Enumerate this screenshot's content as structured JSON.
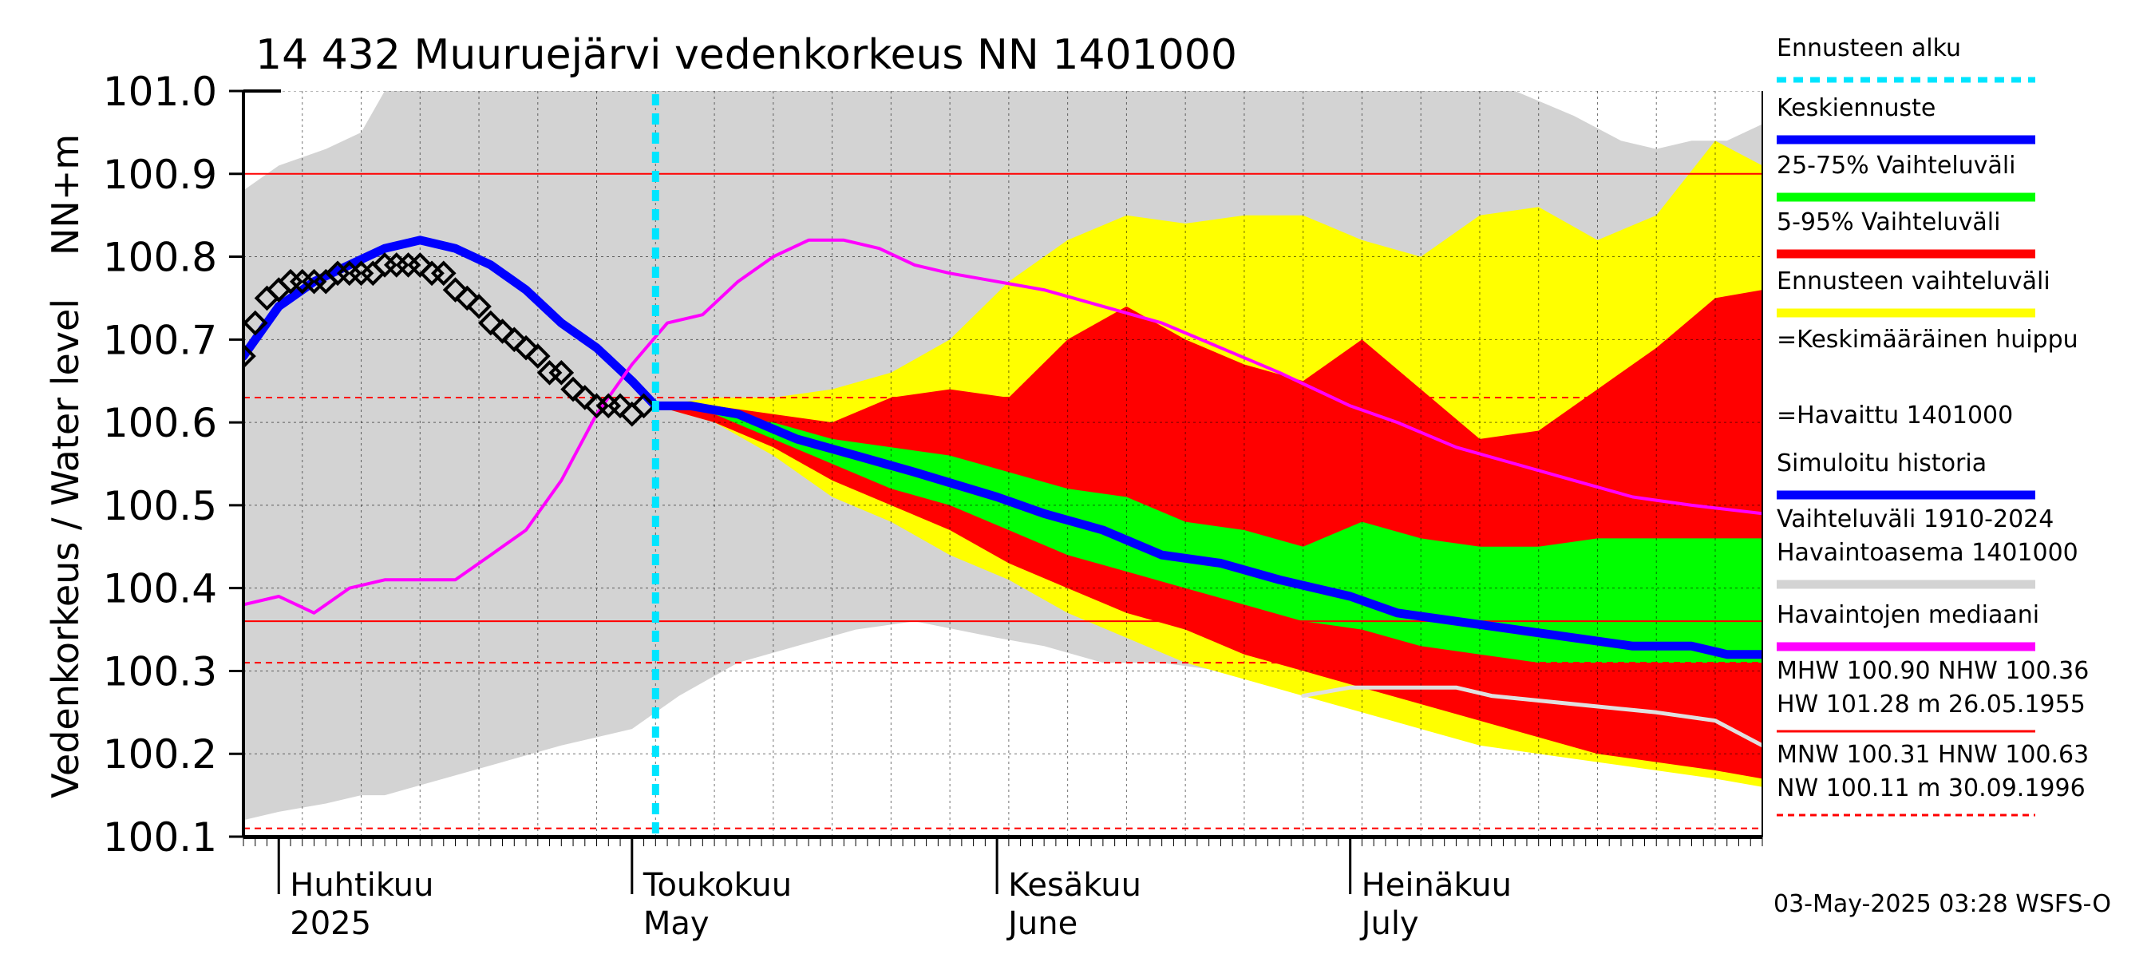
{
  "chart_data": {
    "type": "area",
    "title": "14 432 Muuruejärvi vedenkorkeus NN 1401000",
    "ylabel_left": "Vedenkorkeus / Water level",
    "ylabel_unit": "NN+m",
    "ylim": [
      100.1,
      101.0
    ],
    "yticks": [
      "100.1",
      "100.2",
      "100.3",
      "100.4",
      "100.5",
      "100.6",
      "100.7",
      "100.8",
      "100.9",
      "101.0"
    ],
    "xlim": [
      "2025-03-29",
      "2025-08-05"
    ],
    "forecast_start": "2025-05-03",
    "months": [
      {
        "fi": "Huhtikuu",
        "en": "2025",
        "date": "2025-04-01"
      },
      {
        "fi": "Toukokuu",
        "en": "May",
        "date": "2025-05-01"
      },
      {
        "fi": "Kesäkuu",
        "en": "June",
        "date": "2025-06-01"
      },
      {
        "fi": "Heinäkuu",
        "en": "July",
        "date": "2025-07-01"
      }
    ],
    "reference_lines": [
      {
        "label": "MHW",
        "value": 100.9,
        "style": "solid"
      },
      {
        "label": "NHW",
        "value": 100.36,
        "style": "solid"
      },
      {
        "label": "HNW",
        "value": 100.63,
        "style": "dashed"
      },
      {
        "label": "MNW",
        "value": 100.31,
        "style": "dashed"
      },
      {
        "label": "NW",
        "value": 100.11,
        "style": "dashed"
      }
    ],
    "series": [
      {
        "name": "Vaihteluväli 1910-2024 Havaintoasema 1401000",
        "type": "band",
        "color": "#d3d3d3",
        "x": [
          "2025-03-29",
          "2025-04-01",
          "2025-04-05",
          "2025-04-08",
          "2025-04-10",
          "2025-04-15",
          "2025-04-20",
          "2025-04-25",
          "2025-05-01",
          "2025-05-05",
          "2025-05-10",
          "2025-05-15",
          "2025-05-20",
          "2025-05-25",
          "2025-06-01",
          "2025-06-05",
          "2025-06-10",
          "2025-06-15",
          "2025-06-20",
          "2025-06-25",
          "2025-07-01",
          "2025-07-05",
          "2025-07-10",
          "2025-07-15",
          "2025-07-20",
          "2025-07-24",
          "2025-07-27",
          "2025-07-30",
          "2025-08-02",
          "2025-08-05"
        ],
        "low": [
          100.12,
          100.13,
          100.14,
          100.15,
          100.15,
          100.17,
          100.19,
          100.21,
          100.23,
          100.27,
          100.31,
          100.33,
          100.35,
          100.36,
          100.34,
          100.33,
          100.31,
          100.31,
          100.3,
          100.29,
          100.28,
          100.28,
          100.27,
          100.26,
          100.26,
          100.25,
          100.24,
          100.23,
          100.22,
          100.21
        ],
        "high": [
          100.88,
          100.91,
          100.93,
          100.95,
          101.0,
          101.0,
          101.0,
          101.0,
          101.0,
          101.0,
          101.0,
          101.0,
          101.0,
          101.0,
          101.0,
          101.0,
          101.0,
          101.0,
          101.0,
          101.0,
          101.0,
          101.0,
          101.0,
          101.0,
          100.97,
          100.94,
          100.93,
          100.94,
          100.94,
          100.96
        ]
      },
      {
        "name": "Ennusteen vaihteluväli",
        "type": "band",
        "color": "#ffff00",
        "x": [
          "2025-05-03",
          "2025-05-08",
          "2025-05-13",
          "2025-05-18",
          "2025-05-23",
          "2025-05-28",
          "2025-06-02",
          "2025-06-07",
          "2025-06-12",
          "2025-06-17",
          "2025-06-22",
          "2025-06-27",
          "2025-07-02",
          "2025-07-07",
          "2025-07-12",
          "2025-07-17",
          "2025-07-22",
          "2025-07-27",
          "2025-08-01",
          "2025-08-05"
        ],
        "low": [
          100.62,
          100.6,
          100.56,
          100.51,
          100.48,
          100.44,
          100.41,
          100.37,
          100.34,
          100.31,
          100.29,
          100.27,
          100.25,
          100.23,
          100.21,
          100.2,
          100.19,
          100.18,
          100.17,
          100.16
        ],
        "high": [
          100.62,
          100.63,
          100.63,
          100.64,
          100.66,
          100.7,
          100.77,
          100.82,
          100.85,
          100.84,
          100.85,
          100.85,
          100.82,
          100.8,
          100.85,
          100.86,
          100.82,
          100.85,
          100.94,
          100.91
        ]
      },
      {
        "name": "5-95% Vaihteluväli",
        "type": "band",
        "color": "#ff0000",
        "x": [
          "2025-05-03",
          "2025-05-08",
          "2025-05-13",
          "2025-05-18",
          "2025-05-23",
          "2025-05-28",
          "2025-06-02",
          "2025-06-07",
          "2025-06-12",
          "2025-06-17",
          "2025-06-22",
          "2025-06-27",
          "2025-07-02",
          "2025-07-07",
          "2025-07-12",
          "2025-07-17",
          "2025-07-22",
          "2025-07-27",
          "2025-08-01",
          "2025-08-05"
        ],
        "low": [
          100.62,
          100.6,
          100.57,
          100.53,
          100.5,
          100.47,
          100.43,
          100.4,
          100.37,
          100.35,
          100.32,
          100.3,
          100.28,
          100.26,
          100.24,
          100.22,
          100.2,
          100.19,
          100.18,
          100.17
        ],
        "high": [
          100.62,
          100.62,
          100.61,
          100.6,
          100.63,
          100.64,
          100.63,
          100.7,
          100.74,
          100.7,
          100.67,
          100.65,
          100.7,
          100.64,
          100.58,
          100.59,
          100.64,
          100.69,
          100.75,
          100.76
        ]
      },
      {
        "name": "25-75% Vaihteluväli",
        "type": "band",
        "color": "#00ff00",
        "x": [
          "2025-05-03",
          "2025-05-08",
          "2025-05-13",
          "2025-05-18",
          "2025-05-23",
          "2025-05-28",
          "2025-06-02",
          "2025-06-07",
          "2025-06-12",
          "2025-06-17",
          "2025-06-22",
          "2025-06-27",
          "2025-07-02",
          "2025-07-07",
          "2025-07-12",
          "2025-07-17",
          "2025-07-22",
          "2025-07-27",
          "2025-08-01",
          "2025-08-05"
        ],
        "low": [
          100.62,
          100.61,
          100.58,
          100.55,
          100.52,
          100.5,
          100.47,
          100.44,
          100.42,
          100.4,
          100.38,
          100.36,
          100.35,
          100.33,
          100.32,
          100.31,
          100.31,
          100.31,
          100.31,
          100.31
        ],
        "high": [
          100.62,
          100.61,
          100.6,
          100.58,
          100.57,
          100.56,
          100.54,
          100.52,
          100.51,
          100.48,
          100.47,
          100.45,
          100.48,
          100.46,
          100.45,
          100.45,
          100.46,
          100.46,
          100.46,
          100.46
        ]
      },
      {
        "name": "Simuloitu historia",
        "type": "line",
        "color": "#0000ff",
        "x": [
          "2025-03-29",
          "2025-04-01",
          "2025-04-04",
          "2025-04-07",
          "2025-04-10",
          "2025-04-13",
          "2025-04-16",
          "2025-04-19",
          "2025-04-22",
          "2025-04-25",
          "2025-04-28",
          "2025-05-01",
          "2025-05-03"
        ],
        "values": [
          100.68,
          100.74,
          100.77,
          100.79,
          100.81,
          100.82,
          100.81,
          100.79,
          100.76,
          100.72,
          100.69,
          100.65,
          100.62
        ]
      },
      {
        "name": "Keskiennuste",
        "type": "line",
        "color": "#0000ff",
        "x": [
          "2025-05-03",
          "2025-05-06",
          "2025-05-10",
          "2025-05-15",
          "2025-05-20",
          "2025-05-25",
          "2025-06-01",
          "2025-06-05",
          "2025-06-10",
          "2025-06-15",
          "2025-06-20",
          "2025-06-25",
          "2025-07-01",
          "2025-07-05",
          "2025-07-10",
          "2025-07-15",
          "2025-07-20",
          "2025-07-25",
          "2025-07-30",
          "2025-08-02",
          "2025-08-05"
        ],
        "values": [
          100.62,
          100.62,
          100.61,
          100.58,
          100.56,
          100.54,
          100.51,
          100.49,
          100.47,
          100.44,
          100.43,
          100.41,
          100.39,
          100.37,
          100.36,
          100.35,
          100.34,
          100.33,
          100.33,
          100.32,
          100.32
        ]
      },
      {
        "name": "Havaintojen mediaani",
        "type": "line",
        "color": "#ff00ff",
        "x": [
          "2025-03-29",
          "2025-04-01",
          "2025-04-04",
          "2025-04-07",
          "2025-04-10",
          "2025-04-13",
          "2025-04-16",
          "2025-04-19",
          "2025-04-22",
          "2025-04-25",
          "2025-04-28",
          "2025-05-01",
          "2025-05-04",
          "2025-05-07",
          "2025-05-10",
          "2025-05-13",
          "2025-05-16",
          "2025-05-19",
          "2025-05-22",
          "2025-05-25",
          "2025-05-28",
          "2025-06-01",
          "2025-06-05",
          "2025-06-10",
          "2025-06-15",
          "2025-06-20",
          "2025-06-25",
          "2025-07-01",
          "2025-07-05",
          "2025-07-10",
          "2025-07-15",
          "2025-07-20",
          "2025-07-25",
          "2025-07-30",
          "2025-08-05"
        ],
        "values": [
          100.38,
          100.39,
          100.37,
          100.4,
          100.41,
          100.41,
          100.41,
          100.44,
          100.47,
          100.53,
          100.61,
          100.67,
          100.72,
          100.73,
          100.77,
          100.8,
          100.82,
          100.82,
          100.81,
          100.79,
          100.78,
          100.77,
          100.76,
          100.74,
          100.72,
          100.69,
          100.66,
          100.62,
          100.6,
          100.57,
          100.55,
          100.53,
          100.51,
          100.5,
          100.49
        ]
      },
      {
        "name": "Havaittu 1401000",
        "type": "scatter",
        "color": "#000000",
        "x": [
          "2025-03-29",
          "2025-03-30",
          "2025-03-31",
          "2025-04-01",
          "2025-04-02",
          "2025-04-03",
          "2025-04-04",
          "2025-04-05",
          "2025-04-06",
          "2025-04-07",
          "2025-04-08",
          "2025-04-09",
          "2025-04-10",
          "2025-04-11",
          "2025-04-12",
          "2025-04-13",
          "2025-04-14",
          "2025-04-15",
          "2025-04-16",
          "2025-04-17",
          "2025-04-18",
          "2025-04-19",
          "2025-04-20",
          "2025-04-21",
          "2025-04-22",
          "2025-04-23",
          "2025-04-24",
          "2025-04-25",
          "2025-04-26",
          "2025-04-27",
          "2025-04-28",
          "2025-04-29",
          "2025-04-30",
          "2025-05-01",
          "2025-05-02"
        ],
        "values": [
          100.68,
          100.72,
          100.75,
          100.76,
          100.77,
          100.77,
          100.77,
          100.77,
          100.78,
          100.78,
          100.78,
          100.78,
          100.79,
          100.79,
          100.79,
          100.79,
          100.78,
          100.78,
          100.76,
          100.75,
          100.74,
          100.72,
          100.71,
          100.7,
          100.69,
          100.68,
          100.66,
          100.66,
          100.64,
          100.63,
          100.62,
          100.62,
          100.62,
          100.61,
          100.62
        ]
      },
      {
        "name": "",
        "type": "line",
        "color": "#e0e0e0",
        "x": [
          "2025-06-27",
          "2025-07-01",
          "2025-07-10",
          "2025-07-13",
          "2025-07-20",
          "2025-07-27",
          "2025-08-01",
          "2025-08-05"
        ],
        "values": [
          100.27,
          100.28,
          100.28,
          100.27,
          100.26,
          100.25,
          100.24,
          100.21
        ]
      }
    ],
    "legend": [
      {
        "label": "Ennusteen alku",
        "color": "#00e5ff",
        "style": "dashed"
      },
      {
        "label": "Keskiennuste",
        "color": "#0000ff",
        "style": "line"
      },
      {
        "label": "25-75% Vaihteluväli",
        "color": "#00ff00",
        "style": "line"
      },
      {
        "label": "5-95% Vaihteluväli",
        "color": "#ff0000",
        "style": "line"
      },
      {
        "label": "Ennusteen vaihteluväli",
        "color": "#ffff00",
        "style": "line"
      },
      {
        "label": "=Keskimääräinen huippu",
        "color": "#000000",
        "style": "plus"
      },
      {
        "label": "=Havaittu 1401000",
        "color": "#000000",
        "style": "diamond"
      },
      {
        "label": "Simuloitu historia",
        "color": "#0000ff",
        "style": "line"
      },
      {
        "label": "Vaihteluväli 1910-2024\n Havaintoasema 1401000",
        "color": "#d3d3d3",
        "style": "line"
      },
      {
        "label": "Havaintojen mediaani",
        "color": "#ff00ff",
        "style": "line"
      },
      {
        "label": "MHW 100.90 NHW 100.36\nHW 101.28 m 26.05.1955",
        "color": "#ff0000",
        "style": "thin"
      },
      {
        "label": "MNW 100.31 HNW 100.63\nNW 100.11 m 30.09.1996",
        "color": "#ff0000",
        "style": "dashed-thin"
      }
    ],
    "footer": "03-May-2025 03:28 WSFS-O"
  }
}
